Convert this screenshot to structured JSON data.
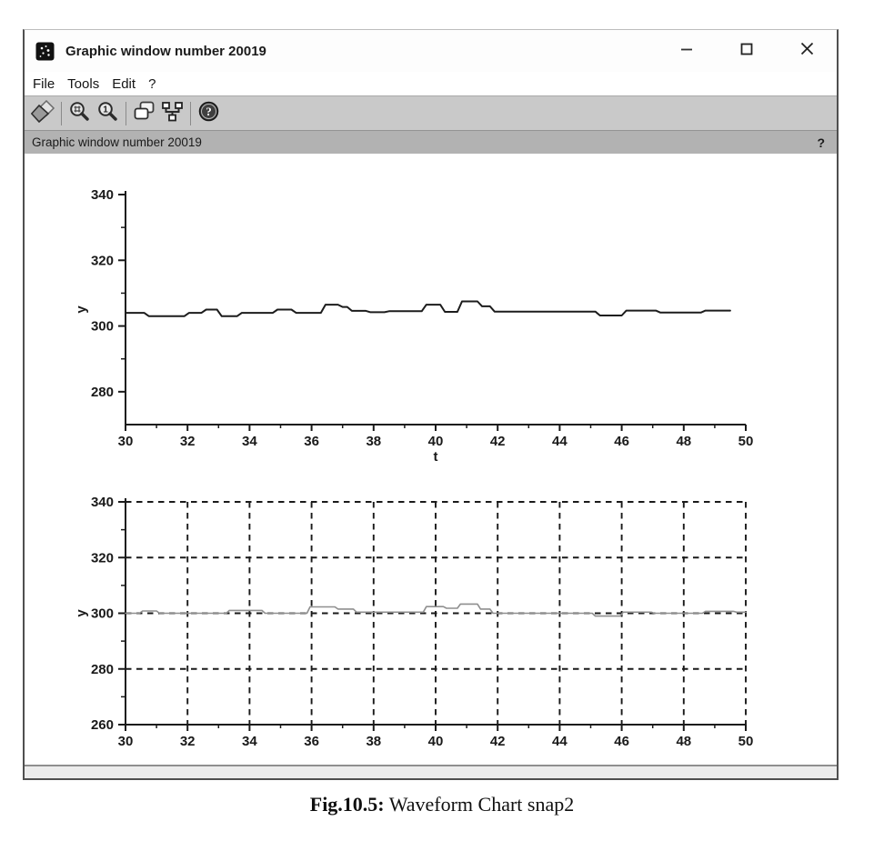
{
  "window": {
    "title": "Graphic window number 20019",
    "app_icon": "scilab-graphic-icon",
    "controls": [
      "minimize",
      "maximize",
      "close"
    ],
    "menu": [
      "File",
      "Tools",
      "Edit",
      "?"
    ],
    "toolbar": {
      "groups": [
        [
          "rotate"
        ],
        [
          "zoom-in",
          "zoom-original"
        ],
        [
          "copy",
          "ged"
        ],
        [
          "help"
        ]
      ]
    },
    "info_bar": {
      "label": "Graphic window number 20019",
      "help": "?"
    },
    "status_bar": {
      "text": ""
    }
  },
  "caption": {
    "prefix": "Fig.10.5:",
    "text": " Waveform Chart snap2"
  },
  "chart_data": [
    {
      "type": "line",
      "title": "",
      "xlabel": "t",
      "ylabel": "y",
      "xlim": [
        30,
        50
      ],
      "ylim": [
        270,
        340
      ],
      "x_ticks": [
        30,
        32,
        34,
        36,
        38,
        40,
        42,
        44,
        46,
        48,
        50
      ],
      "x_minor_ticks": [
        31,
        33,
        35,
        37,
        39,
        41,
        43,
        45,
        47,
        49
      ],
      "y_ticks": [
        280,
        300,
        320,
        340
      ],
      "y_minor_ticks": [
        290,
        310,
        330
      ],
      "grid": false,
      "line_color": "#1c1c1c",
      "line_width": 2,
      "points": [
        [
          30.0,
          304
        ],
        [
          30.6,
          304
        ],
        [
          30.75,
          303
        ],
        [
          31.9,
          303
        ],
        [
          32.05,
          304
        ],
        [
          32.45,
          304
        ],
        [
          32.6,
          305
        ],
        [
          32.95,
          305
        ],
        [
          33.1,
          303
        ],
        [
          33.6,
          303
        ],
        [
          33.75,
          304
        ],
        [
          34.75,
          304
        ],
        [
          34.9,
          305
        ],
        [
          35.35,
          305
        ],
        [
          35.5,
          304
        ],
        [
          36.3,
          304
        ],
        [
          36.45,
          306.5
        ],
        [
          36.85,
          306.5
        ],
        [
          37.0,
          305.8
        ],
        [
          37.15,
          305.8
        ],
        [
          37.3,
          304.6
        ],
        [
          37.75,
          304.6
        ],
        [
          37.9,
          304.2
        ],
        [
          38.35,
          304.2
        ],
        [
          38.5,
          304.5
        ],
        [
          39.55,
          304.5
        ],
        [
          39.7,
          306.5
        ],
        [
          40.15,
          306.5
        ],
        [
          40.3,
          304.3
        ],
        [
          40.7,
          304.3
        ],
        [
          40.85,
          307.5
        ],
        [
          41.35,
          307.5
        ],
        [
          41.5,
          306
        ],
        [
          41.75,
          306
        ],
        [
          41.9,
          304.4
        ],
        [
          45.15,
          304.4
        ],
        [
          45.3,
          303.2
        ],
        [
          46.0,
          303.2
        ],
        [
          46.15,
          304.7
        ],
        [
          47.1,
          304.7
        ],
        [
          47.25,
          304.1
        ],
        [
          48.55,
          304.1
        ],
        [
          48.7,
          304.7
        ],
        [
          49.5,
          304.7
        ]
      ]
    },
    {
      "type": "line",
      "title": "",
      "xlabel": "",
      "ylabel": "y",
      "xlim": [
        30,
        50
      ],
      "ylim": [
        260,
        340
      ],
      "x_ticks": [
        30,
        32,
        34,
        36,
        38,
        40,
        42,
        44,
        46,
        48,
        50
      ],
      "x_minor_ticks": [
        31,
        33,
        35,
        37,
        39,
        41,
        43,
        45,
        47,
        49
      ],
      "y_ticks": [
        260,
        280,
        300,
        320,
        340
      ],
      "y_minor_ticks": [
        270,
        290,
        310,
        330
      ],
      "grid": {
        "dashed": true,
        "x_lines": [
          32,
          34,
          36,
          38,
          40,
          42,
          44,
          46,
          48,
          50
        ],
        "y_lines": [
          280,
          300,
          320,
          340
        ]
      },
      "line_color": "#8f8f8f",
      "line_width": 1.6,
      "points": [
        [
          30.0,
          300
        ],
        [
          30.45,
          300
        ],
        [
          30.55,
          300.8
        ],
        [
          31.0,
          300.8
        ],
        [
          31.1,
          300
        ],
        [
          33.25,
          300
        ],
        [
          33.35,
          301
        ],
        [
          34.4,
          301
        ],
        [
          34.5,
          300
        ],
        [
          35.85,
          300
        ],
        [
          35.95,
          302.3
        ],
        [
          36.75,
          302.3
        ],
        [
          36.85,
          301.5
        ],
        [
          37.35,
          301.5
        ],
        [
          37.45,
          300.4
        ],
        [
          39.6,
          300.4
        ],
        [
          39.7,
          302.4
        ],
        [
          40.25,
          302.4
        ],
        [
          40.35,
          301.8
        ],
        [
          40.7,
          301.8
        ],
        [
          40.8,
          303.3
        ],
        [
          41.35,
          303.3
        ],
        [
          41.45,
          301.5
        ],
        [
          41.75,
          301.5
        ],
        [
          41.85,
          300
        ],
        [
          45.05,
          300
        ],
        [
          45.15,
          299
        ],
        [
          45.95,
          299
        ],
        [
          46.05,
          300.4
        ],
        [
          46.95,
          300.4
        ],
        [
          47.05,
          300
        ],
        [
          48.6,
          300
        ],
        [
          48.7,
          300.7
        ],
        [
          49.6,
          300.7
        ],
        [
          49.7,
          300.4
        ],
        [
          50.0,
          300.4
        ]
      ]
    }
  ]
}
